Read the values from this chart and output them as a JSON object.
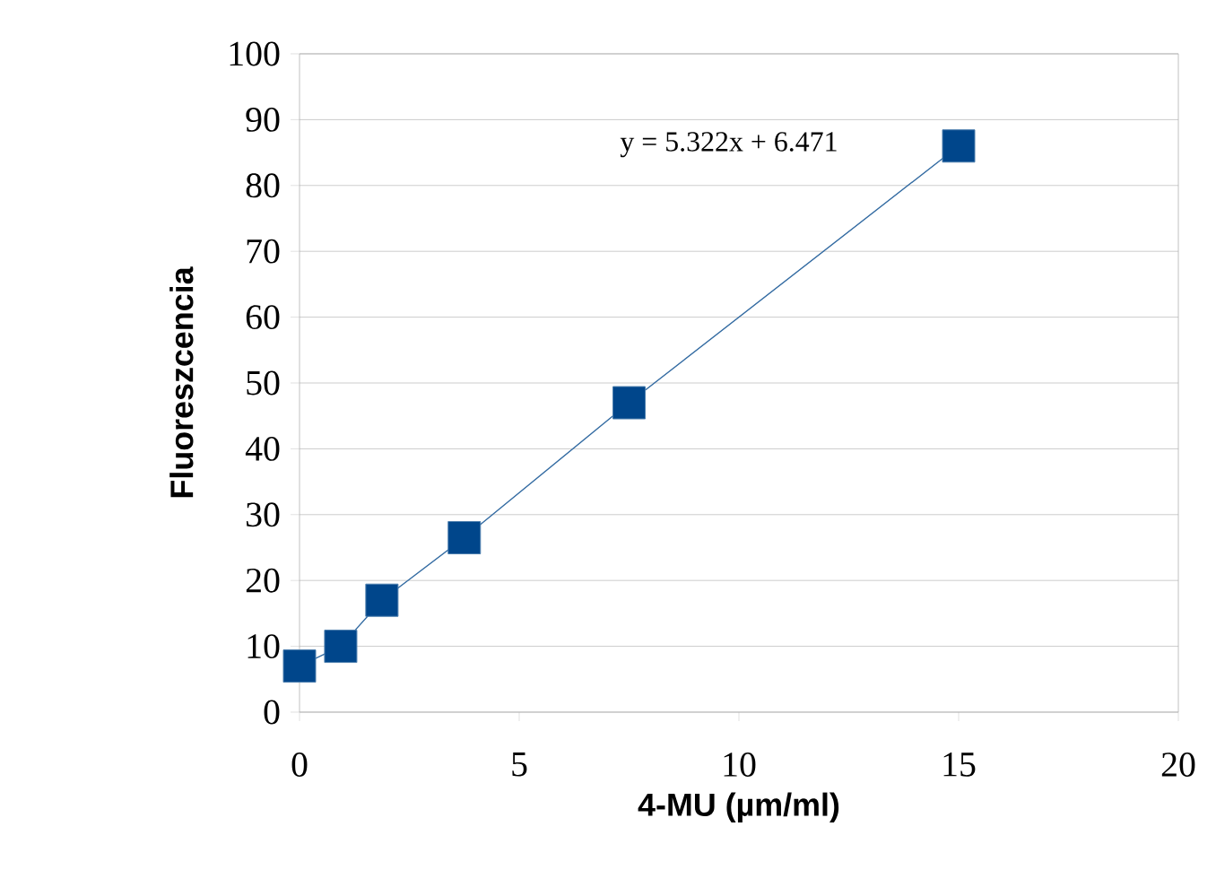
{
  "chart_data": {
    "type": "line",
    "xlabel": "4-MU (µm/ml)",
    "ylabel": "Fluoreszcencia",
    "annotations": [
      "y = 5.322x + 6.471"
    ],
    "series": [
      {
        "color": "#00468b",
        "marker": "square",
        "line_style": "solid",
        "x": [
          0,
          0.9375,
          1.875,
          3.75,
          7.5,
          15
        ],
        "values": [
          7,
          10,
          17,
          26.5,
          47,
          86
        ]
      }
    ],
    "xlim": [
      0,
      20
    ],
    "xticks": [
      0,
      5,
      10,
      15,
      20
    ],
    "ylim": [
      0,
      100
    ],
    "yticks": [
      0,
      10,
      20,
      30,
      40,
      50,
      60,
      70,
      80,
      90,
      100
    ],
    "grid": "y"
  }
}
